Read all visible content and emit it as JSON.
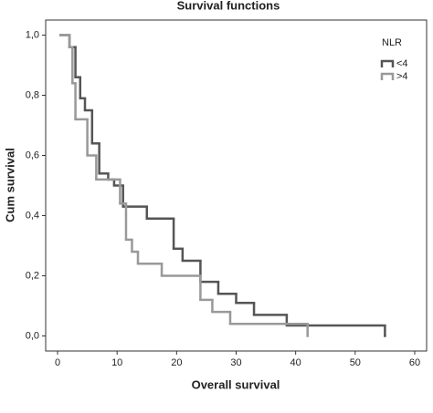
{
  "chart_data": {
    "type": "step",
    "title": "Survival functions",
    "xlabel": "Overall survival",
    "ylabel": "Cum survival",
    "xlim": [
      -2,
      62
    ],
    "ylim": [
      -0.05,
      1.05
    ],
    "xticks": [
      0,
      10,
      20,
      30,
      40,
      50,
      60
    ],
    "yticks": [
      {
        "value": 0,
        "label": "0,0"
      },
      {
        "value": 0.2,
        "label": "0,2"
      },
      {
        "value": 0.4,
        "label": "0,4"
      },
      {
        "value": 0.6,
        "label": "0,6"
      },
      {
        "value": 0.8,
        "label": "0,8"
      },
      {
        "value": 1.0,
        "label": "1,0"
      }
    ],
    "legend_title": "NLR",
    "legend": "upper right",
    "series": [
      {
        "name": "<4",
        "color": "#555555",
        "x": [
          0.5,
          2,
          3,
          3.8,
          4.6,
          5.8,
          7,
          8.5,
          9.5,
          11,
          15,
          19.5,
          21,
          24,
          27,
          30,
          33,
          38.5,
          55
        ],
        "values": [
          1.0,
          0.96,
          0.86,
          0.79,
          0.75,
          0.64,
          0.54,
          0.52,
          0.5,
          0.43,
          0.39,
          0.29,
          0.25,
          0.18,
          0.14,
          0.11,
          0.07,
          0.035,
          0.0
        ]
      },
      {
        "name": ">4",
        "color": "#999999",
        "x": [
          0.5,
          2,
          2.5,
          3,
          5,
          6.5,
          10.5,
          11.5,
          12.5,
          13.5,
          17.5,
          24,
          26,
          29,
          42
        ],
        "values": [
          1.0,
          0.96,
          0.84,
          0.72,
          0.6,
          0.52,
          0.44,
          0.32,
          0.28,
          0.24,
          0.2,
          0.12,
          0.08,
          0.04,
          0.0
        ]
      }
    ]
  }
}
